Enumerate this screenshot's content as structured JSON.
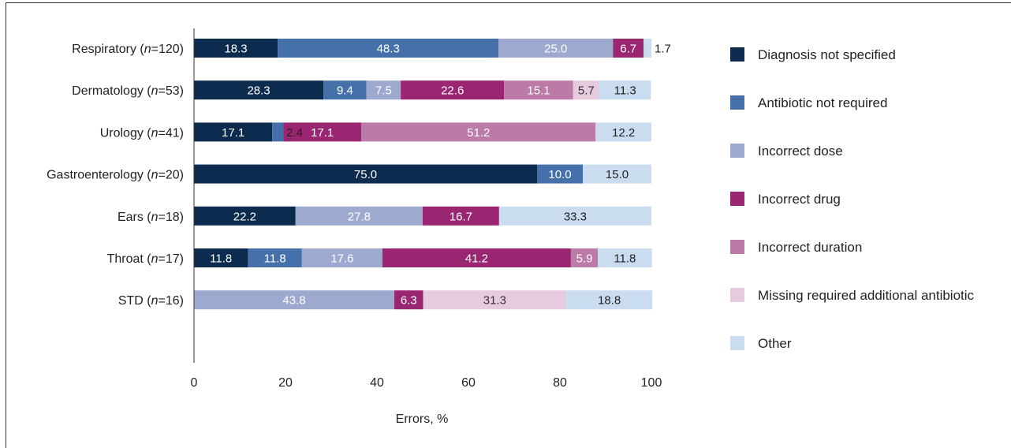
{
  "chart_data": {
    "type": "bar",
    "orientation": "horizontal",
    "stacked": true,
    "xlabel": "Errors, %",
    "xlim": [
      0,
      100
    ],
    "xticks": [
      0,
      20,
      40,
      60,
      80,
      100
    ],
    "legend_position": "right",
    "categories": [
      {
        "name": "Respiratory",
        "n": "120"
      },
      {
        "name": "Dermatology",
        "n": "53"
      },
      {
        "name": "Urology",
        "n": "41"
      },
      {
        "name": "Gastroenterology",
        "n": "20"
      },
      {
        "name": "Ears",
        "n": "18"
      },
      {
        "name": "Throat",
        "n": "17"
      },
      {
        "name": "STD",
        "n": "16"
      }
    ],
    "series": [
      {
        "name": "Diagnosis not specified",
        "color": "#0c2b4e",
        "text_color": "#ffffff",
        "values": [
          18.3,
          28.3,
          17.1,
          75.0,
          22.2,
          11.8,
          0
        ]
      },
      {
        "name": "Antibiotic not required",
        "color": "#4670a9",
        "text_color": "#ffffff",
        "values": [
          48.3,
          9.4,
          2.4,
          10.0,
          0,
          11.8,
          0
        ]
      },
      {
        "name": "Incorrect dose",
        "color": "#9ea9cf",
        "text_color": "#ffffff",
        "values": [
          25.0,
          7.5,
          0,
          0,
          27.8,
          17.6,
          43.8
        ]
      },
      {
        "name": "Incorrect drug",
        "color": "#9a2671",
        "text_color": "#ffffff",
        "values": [
          6.7,
          22.6,
          17.1,
          0,
          16.7,
          41.2,
          6.3
        ]
      },
      {
        "name": "Incorrect duration",
        "color": "#bc7aa6",
        "text_color": "#ffffff",
        "values": [
          0,
          15.1,
          51.2,
          0,
          0,
          5.9,
          0
        ]
      },
      {
        "name": "Missing required additional antibiotic",
        "color": "#e6cade",
        "text_color": "#333333",
        "values": [
          0,
          5.7,
          0,
          0,
          0,
          0,
          31.3
        ]
      },
      {
        "name": "Other",
        "color": "#c9dcf0",
        "text_color": "#222222",
        "values": [
          1.7,
          11.3,
          12.2,
          15.0,
          33.3,
          11.8,
          18.8
        ]
      }
    ]
  }
}
